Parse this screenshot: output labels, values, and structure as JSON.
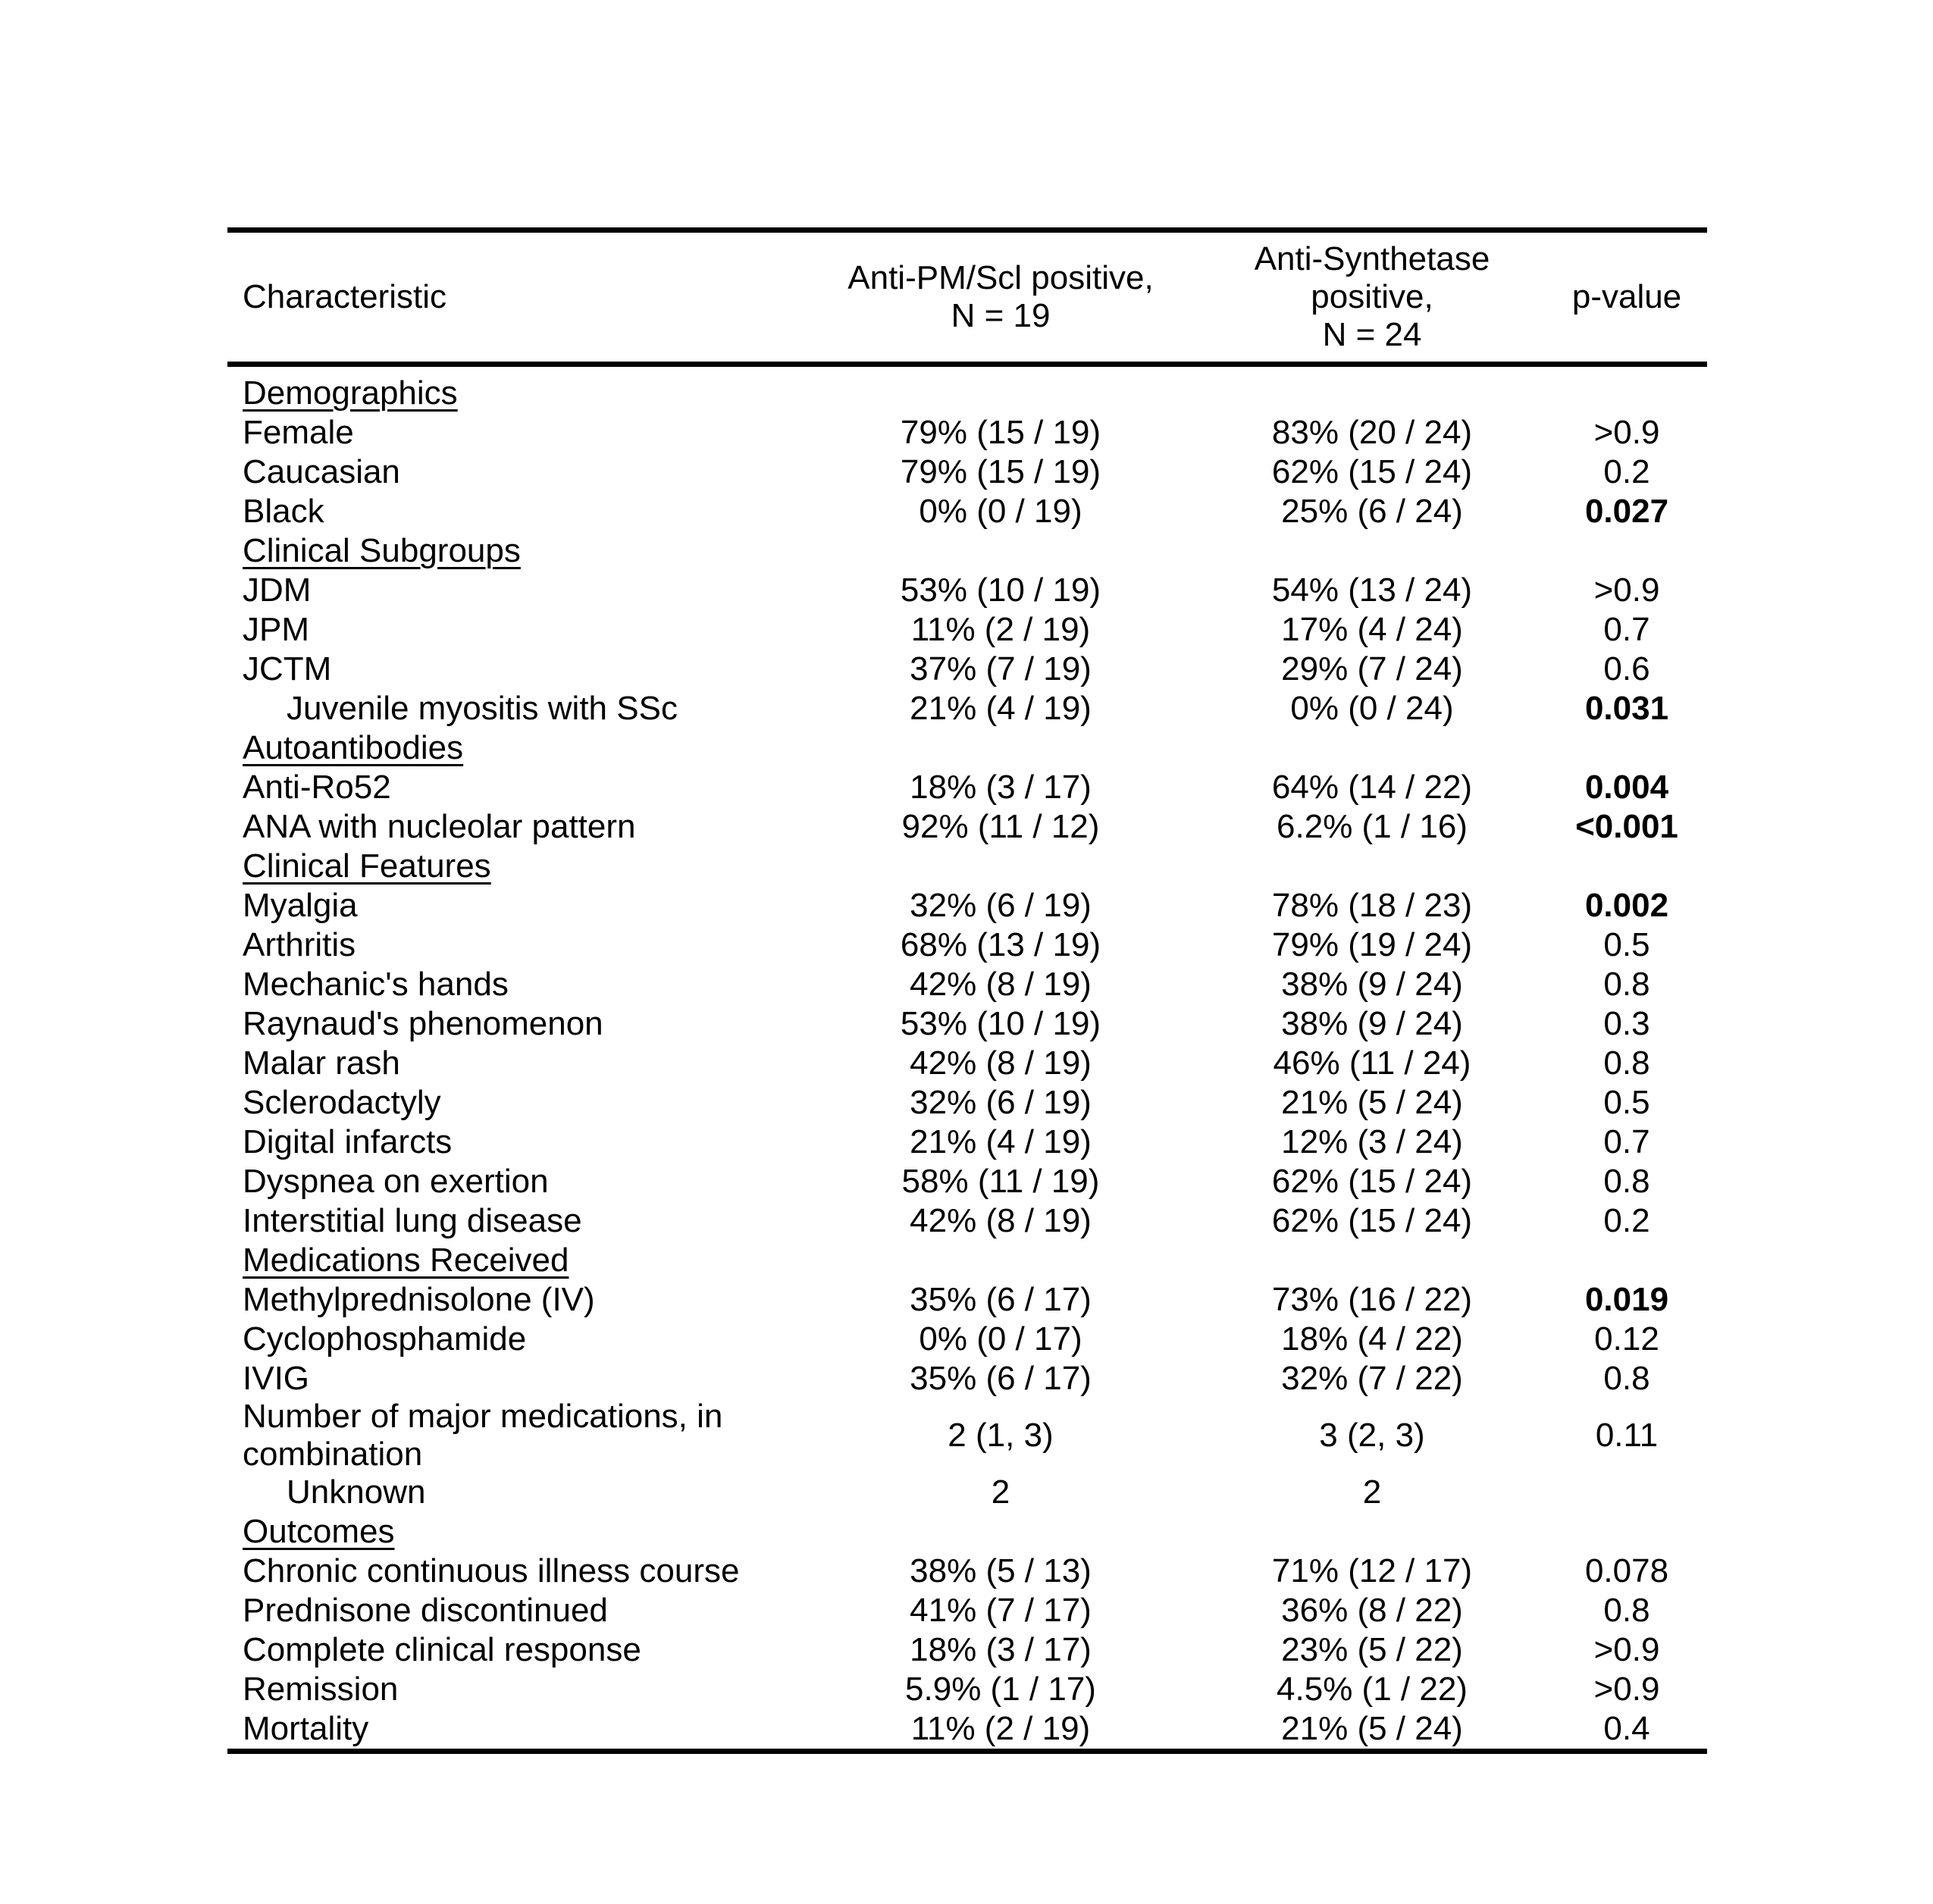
{
  "page": {
    "background": "#ffffff",
    "text_color": "#000000"
  },
  "table": {
    "header": {
      "characteristic": "Characteristic",
      "group1_line1": "Anti-PM/Scl positive,",
      "group1_line2": "N = 19",
      "group2_line1": "Anti-Synthetase positive,",
      "group2_line2": "N = 24",
      "p_value": "p-value"
    },
    "rows": [
      {
        "type": "section",
        "label": "Demographics"
      },
      {
        "type": "data",
        "label": "Female",
        "indent": false,
        "group1": "79% (15 / 19)",
        "group2": "83% (20 / 24)",
        "p": ">0.9",
        "p_bold": false
      },
      {
        "type": "data",
        "label": "Caucasian",
        "indent": false,
        "group1": "79% (15 / 19)",
        "group2": "62% (15 / 24)",
        "p": "0.2",
        "p_bold": false
      },
      {
        "type": "data",
        "label": "Black",
        "indent": false,
        "group1": "0% (0 / 19)",
        "group2": "25% (6 / 24)",
        "p": "0.027",
        "p_bold": true
      },
      {
        "type": "section",
        "label": "Clinical Subgroups"
      },
      {
        "type": "data",
        "label": "JDM",
        "indent": false,
        "group1": "53% (10 / 19)",
        "group2": "54% (13 / 24)",
        "p": ">0.9",
        "p_bold": false
      },
      {
        "type": "data",
        "label": "JPM",
        "indent": false,
        "group1": "11% (2 / 19)",
        "group2": "17% (4 / 24)",
        "p": "0.7",
        "p_bold": false
      },
      {
        "type": "data",
        "label": "JCTM",
        "indent": false,
        "group1": "37% (7 / 19)",
        "group2": "29% (7 / 24)",
        "p": "0.6",
        "p_bold": false
      },
      {
        "type": "data",
        "label": "Juvenile myositis with SSc",
        "indent": true,
        "group1": "21% (4 / 19)",
        "group2": "0% (0 / 24)",
        "p": "0.031",
        "p_bold": true
      },
      {
        "type": "section",
        "label": "Autoantibodies"
      },
      {
        "type": "data",
        "label": "Anti-Ro52",
        "indent": false,
        "group1": "18% (3 / 17)",
        "group2": "64% (14 / 22)",
        "p": "0.004",
        "p_bold": true
      },
      {
        "type": "data",
        "label": "ANA with nucleolar pattern",
        "indent": false,
        "group1": "92% (11 / 12)",
        "group2": "6.2% (1 / 16)",
        "p": "<0.001",
        "p_bold": true
      },
      {
        "type": "section",
        "label": "Clinical Features"
      },
      {
        "type": "data",
        "label": "Myalgia",
        "indent": false,
        "group1": "32% (6 / 19)",
        "group2": "78% (18 / 23)",
        "p": "0.002",
        "p_bold": true
      },
      {
        "type": "data",
        "label": "Arthritis",
        "indent": false,
        "group1": "68% (13 / 19)",
        "group2": "79% (19 / 24)",
        "p": "0.5",
        "p_bold": false
      },
      {
        "type": "data",
        "label": "Mechanic's hands",
        "indent": false,
        "group1": "42% (8 / 19)",
        "group2": "38% (9 / 24)",
        "p": "0.8",
        "p_bold": false
      },
      {
        "type": "data",
        "label": "Raynaud's phenomenon",
        "indent": false,
        "group1": "53% (10 / 19)",
        "group2": "38% (9 / 24)",
        "p": "0.3",
        "p_bold": false
      },
      {
        "type": "data",
        "label": "Malar rash",
        "indent": false,
        "group1": "42% (8 / 19)",
        "group2": "46% (11 / 24)",
        "p": "0.8",
        "p_bold": false
      },
      {
        "type": "data",
        "label": "Sclerodactyly",
        "indent": false,
        "group1": "32% (6 / 19)",
        "group2": "21% (5 / 24)",
        "p": "0.5",
        "p_bold": false
      },
      {
        "type": "data",
        "label": "Digital infarcts",
        "indent": false,
        "group1": "21% (4 / 19)",
        "group2": "12% (3 / 24)",
        "p": "0.7",
        "p_bold": false
      },
      {
        "type": "data",
        "label": "Dyspnea on exertion",
        "indent": false,
        "group1": "58% (11 / 19)",
        "group2": "62% (15 / 24)",
        "p": "0.8",
        "p_bold": false
      },
      {
        "type": "data",
        "label": "Interstitial lung disease",
        "indent": false,
        "group1": "42% (8 / 19)",
        "group2": "62% (15 / 24)",
        "p": "0.2",
        "p_bold": false
      },
      {
        "type": "section",
        "label": "Medications Received"
      },
      {
        "type": "data",
        "label": "Methylprednisolone (IV)",
        "indent": false,
        "group1": "35% (6 / 17)",
        "group2": "73% (16 / 22)",
        "p": "0.019",
        "p_bold": true
      },
      {
        "type": "data",
        "label": "Cyclophosphamide",
        "indent": false,
        "group1": "0% (0 / 17)",
        "group2": "18% (4 / 22)",
        "p": "0.12",
        "p_bold": false
      },
      {
        "type": "data",
        "label": "IVIG",
        "indent": false,
        "group1": "35% (6 / 17)",
        "group2": "32% (7 / 22)",
        "p": "0.8",
        "p_bold": false
      },
      {
        "type": "data",
        "label": "Number of major medications, in combination",
        "indent": false,
        "group1": "2 (1, 3)",
        "group2": "3 (2, 3)",
        "p": "0.11",
        "p_bold": false
      },
      {
        "type": "data",
        "label": "Unknown",
        "indent": true,
        "group1": "2",
        "group2": "2",
        "p": "",
        "p_bold": false
      },
      {
        "type": "section",
        "label": "Outcomes"
      },
      {
        "type": "data",
        "label": "Chronic continuous illness course",
        "indent": false,
        "group1": "38% (5 / 13)",
        "group2": "71% (12 / 17)",
        "p": "0.078",
        "p_bold": false
      },
      {
        "type": "data",
        "label": "Prednisone discontinued",
        "indent": false,
        "group1": "41% (7 / 17)",
        "group2": "36% (8 / 22)",
        "p": "0.8",
        "p_bold": false
      },
      {
        "type": "data",
        "label": "Complete clinical response",
        "indent": false,
        "group1": "18% (3 / 17)",
        "group2": "23% (5 / 22)",
        "p": ">0.9",
        "p_bold": false
      },
      {
        "type": "data",
        "label": "Remission",
        "indent": false,
        "group1": "5.9% (1 / 17)",
        "group2": "4.5% (1 / 22)",
        "p": ">0.9",
        "p_bold": false
      },
      {
        "type": "data",
        "label": "Mortality",
        "indent": false,
        "group1": "11% (2 / 19)",
        "group2": "21% (5 / 24)",
        "p": "0.4",
        "p_bold": false
      }
    ]
  }
}
